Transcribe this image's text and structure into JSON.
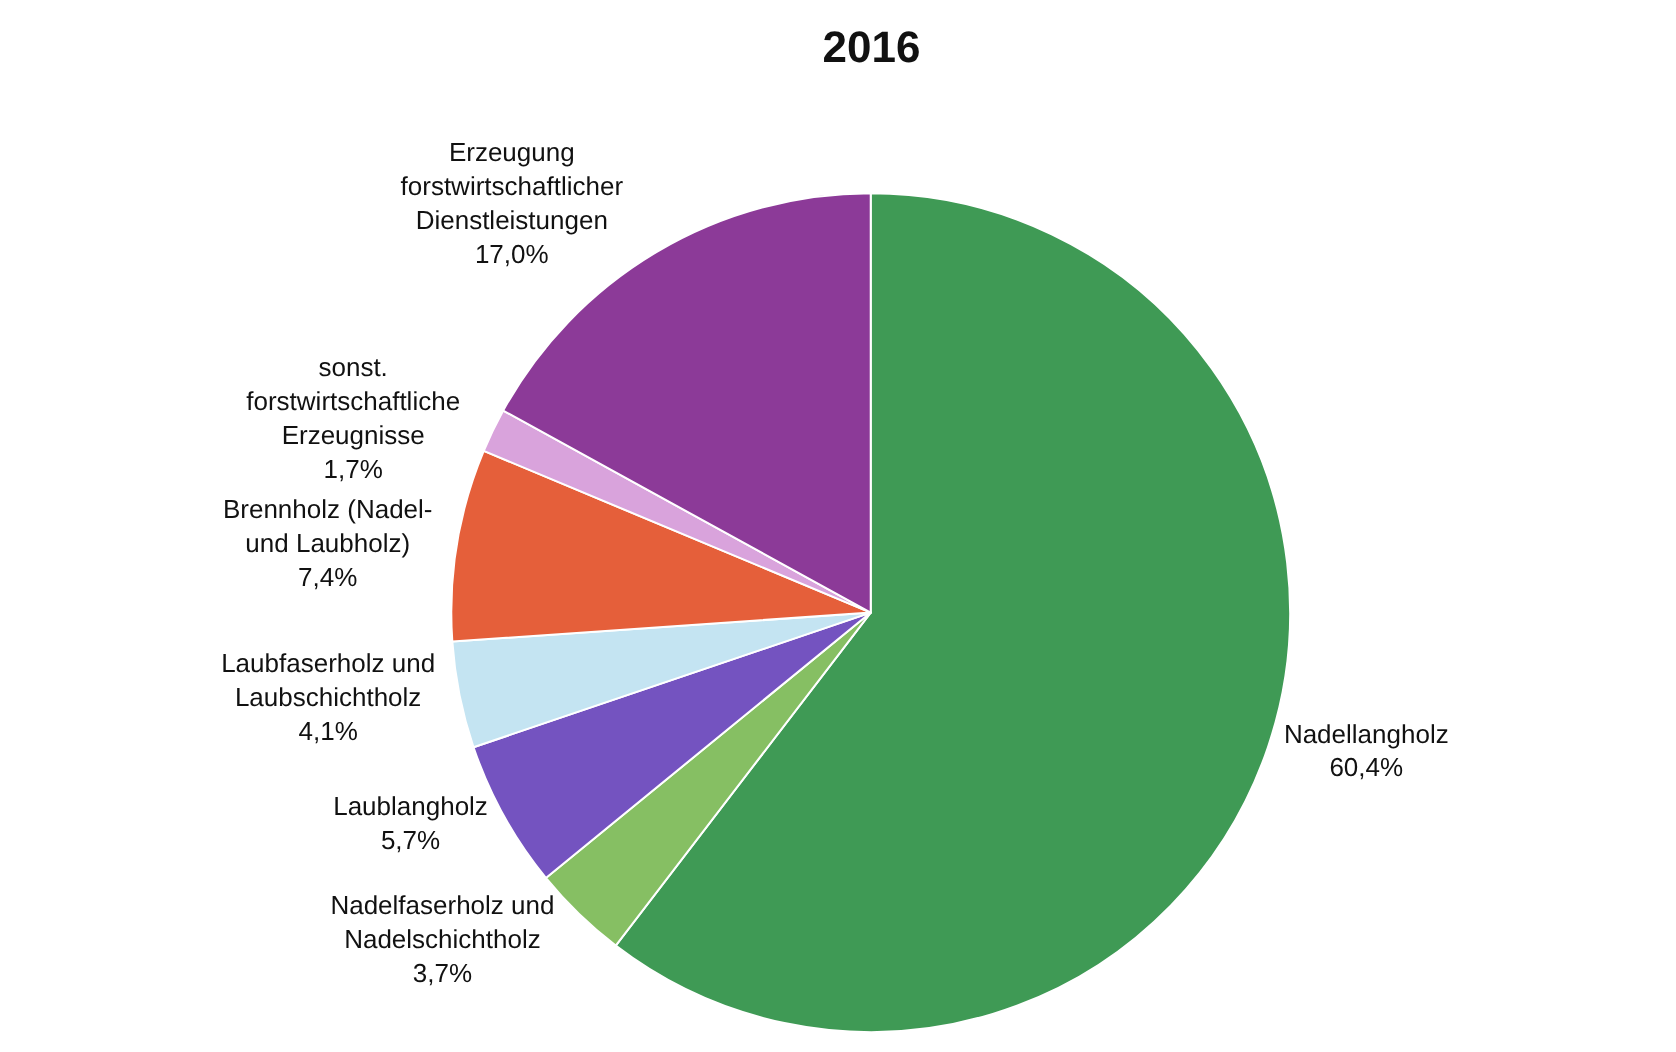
{
  "chart_data": {
    "type": "pie",
    "title": "2016",
    "categories": [
      "Nadellangholz",
      "Nadelfaserholz und\nNadelschichtholz",
      "Laublangholz",
      "Laubfaserholz und\nLaubschichtholz",
      "Brennholz (Nadel-\nund Laubholz)",
      "sonst.\nforstwirtschaftliche\nErzeugnisse",
      "Erzeugung\nforstwirtschaftlicher\nDienstleistungen"
    ],
    "values": [
      60.4,
      3.7,
      5.7,
      4.1,
      7.4,
      1.7,
      17.0
    ],
    "value_labels": [
      "60,4%",
      "3,7%",
      "5,7%",
      "4,1%",
      "7,4%",
      "1,7%",
      "17,0%"
    ],
    "colors": [
      "#3f9a55",
      "#86bf63",
      "#7453c0",
      "#c4e4f2",
      "#e55f3a",
      "#d9a3dc",
      "#8c3a98"
    ],
    "legend": false
  }
}
